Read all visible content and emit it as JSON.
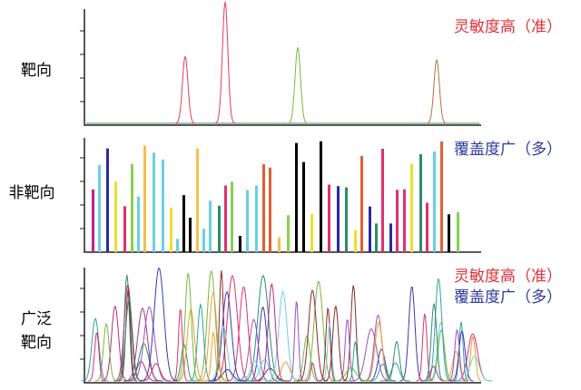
{
  "panels": [
    {
      "label_lines": [
        "靶向"
      ],
      "notes": [
        "灵敏度高（准）"
      ]
    },
    {
      "label_lines": [
        "非靶向"
      ],
      "notes": [
        "覆盖度广（多）"
      ]
    },
    {
      "label_lines": [
        "广泛",
        "靶向"
      ],
      "notes": [
        "灵敏度高（准）",
        "覆盖度广（多）"
      ]
    }
  ]
}
